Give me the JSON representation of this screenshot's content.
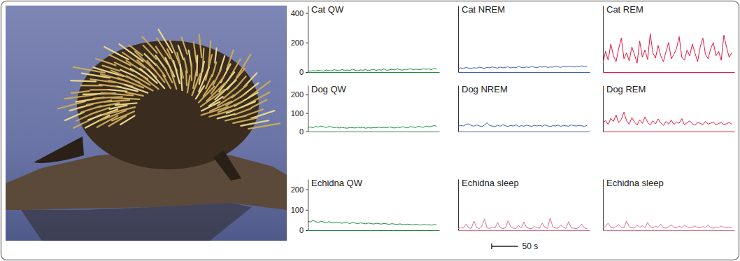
{
  "chart_data": [
    {
      "type": "line",
      "title": "Cat QW",
      "color": "#1e8a3e",
      "xlim": [
        0,
        250
      ],
      "ylim": [
        0,
        450
      ],
      "yticks": [
        0,
        200,
        400
      ],
      "tick_labels": "y",
      "x": [
        0,
        5,
        10,
        15,
        20,
        25,
        30,
        35,
        40,
        45,
        50,
        55,
        60,
        65,
        70,
        75,
        80,
        85,
        90,
        95,
        100,
        105,
        110,
        115,
        120,
        125,
        130,
        135,
        140,
        145,
        150,
        155,
        160,
        165,
        170,
        175,
        180,
        185,
        190,
        195,
        200,
        205,
        210,
        215,
        220,
        225,
        230,
        235,
        240,
        245
      ],
      "values": [
        8,
        6,
        10,
        7,
        12,
        9,
        6,
        14,
        10,
        8,
        16,
        12,
        9,
        18,
        11,
        14,
        10,
        20,
        13,
        9,
        15,
        12,
        17,
        10,
        14,
        19,
        11,
        16,
        13,
        21,
        12,
        15,
        18,
        14,
        22,
        16,
        13,
        19,
        17,
        24,
        15,
        20,
        18,
        16,
        23,
        19,
        21,
        17,
        25,
        20
      ]
    },
    {
      "type": "line",
      "title": "Cat NREM",
      "color": "#3a5fb0",
      "xlim": [
        0,
        250
      ],
      "ylim": [
        0,
        450
      ],
      "tick_labels": false,
      "x": [
        0,
        5,
        10,
        15,
        20,
        25,
        30,
        35,
        40,
        45,
        50,
        55,
        60,
        65,
        70,
        75,
        80,
        85,
        90,
        95,
        100,
        105,
        110,
        115,
        120,
        125,
        130,
        135,
        140,
        145,
        150,
        155,
        160,
        165,
        170,
        175,
        180,
        185,
        190,
        195,
        200,
        205,
        210,
        215,
        220,
        225,
        230,
        235,
        240,
        245
      ],
      "values": [
        22,
        28,
        25,
        31,
        27,
        24,
        30,
        26,
        33,
        29,
        25,
        32,
        28,
        35,
        30,
        27,
        34,
        29,
        31,
        36,
        28,
        33,
        30,
        37,
        32,
        29,
        35,
        31,
        38,
        33,
        30,
        36,
        34,
        39,
        31,
        35,
        33,
        40,
        36,
        32,
        38,
        35,
        41,
        37,
        34,
        39,
        36,
        42,
        38,
        35
      ]
    },
    {
      "type": "line",
      "title": "Cat REM",
      "color": "#e0193f",
      "xlim": [
        0,
        250
      ],
      "ylim": [
        0,
        450
      ],
      "tick_labels": false,
      "x": [
        0,
        5,
        10,
        15,
        20,
        25,
        30,
        35,
        40,
        45,
        50,
        55,
        60,
        65,
        70,
        75,
        80,
        85,
        90,
        95,
        100,
        105,
        110,
        115,
        120,
        125,
        130,
        135,
        140,
        145,
        150,
        155,
        160,
        165,
        170,
        175,
        180,
        185,
        190,
        195,
        200,
        205,
        210,
        215,
        220,
        225,
        230,
        235,
        240,
        245
      ],
      "values": [
        60,
        140,
        80,
        190,
        110,
        70,
        160,
        230,
        90,
        130,
        75,
        170,
        120,
        60,
        210,
        100,
        150,
        85,
        260,
        130,
        95,
        180,
        110,
        70,
        140,
        200,
        90,
        120,
        160,
        240,
        100,
        80,
        150,
        110,
        190,
        130,
        70,
        170,
        230,
        120,
        90,
        160,
        200,
        110,
        140,
        80,
        250,
        170,
        100,
        130
      ]
    },
    {
      "type": "line",
      "title": "Dog QW",
      "color": "#1e8a3e",
      "xlim": [
        0,
        250
      ],
      "ylim": [
        0,
        250
      ],
      "yticks": [
        0,
        100,
        200
      ],
      "tick_labels": "y",
      "x": [
        0,
        5,
        10,
        15,
        20,
        25,
        30,
        35,
        40,
        45,
        50,
        55,
        60,
        65,
        70,
        75,
        80,
        85,
        90,
        95,
        100,
        105,
        110,
        115,
        120,
        125,
        130,
        135,
        140,
        145,
        150,
        155,
        160,
        165,
        170,
        175,
        180,
        185,
        190,
        195,
        200,
        205,
        210,
        215,
        220,
        225,
        230,
        235,
        240,
        245
      ],
      "values": [
        22,
        25,
        20,
        28,
        24,
        30,
        26,
        22,
        27,
        25,
        21,
        24,
        19,
        23,
        20,
        18,
        22,
        21,
        19,
        24,
        20,
        23,
        18,
        21,
        19,
        22,
        20,
        24,
        21,
        23,
        20,
        25,
        22,
        19,
        24,
        21,
        26,
        23,
        20,
        27,
        24,
        22,
        28,
        25,
        23,
        30,
        26,
        28,
        32,
        29
      ]
    },
    {
      "type": "line",
      "title": "Dog NREM",
      "color": "#3a5fb0",
      "xlim": [
        0,
        250
      ],
      "ylim": [
        0,
        250
      ],
      "tick_labels": false,
      "x": [
        0,
        5,
        10,
        15,
        20,
        25,
        30,
        35,
        40,
        45,
        50,
        55,
        60,
        65,
        70,
        75,
        80,
        85,
        90,
        95,
        100,
        105,
        110,
        115,
        120,
        125,
        130,
        135,
        140,
        145,
        150,
        155,
        160,
        165,
        170,
        175,
        180,
        185,
        190,
        195,
        200,
        205,
        210,
        215,
        220,
        225,
        230,
        235,
        240,
        245
      ],
      "values": [
        28,
        34,
        30,
        38,
        42,
        33,
        29,
        36,
        31,
        27,
        35,
        48,
        32,
        30,
        26,
        34,
        29,
        37,
        31,
        28,
        33,
        30,
        36,
        27,
        32,
        29,
        35,
        31,
        28,
        34,
        30,
        33,
        29,
        36,
        31,
        27,
        32,
        30,
        35,
        28,
        33,
        31,
        29,
        36,
        32,
        30,
        34,
        31,
        28,
        33
      ]
    },
    {
      "type": "line",
      "title": "Dog REM",
      "color": "#e0193f",
      "xlim": [
        0,
        250
      ],
      "ylim": [
        0,
        250
      ],
      "tick_labels": false,
      "x": [
        0,
        5,
        10,
        15,
        20,
        25,
        30,
        35,
        40,
        45,
        50,
        55,
        60,
        65,
        70,
        75,
        80,
        85,
        90,
        95,
        100,
        105,
        110,
        115,
        120,
        125,
        130,
        135,
        140,
        145,
        150,
        155,
        160,
        165,
        170,
        175,
        180,
        185,
        190,
        195,
        200,
        205,
        210,
        215,
        220,
        225,
        230,
        235,
        240,
        245
      ],
      "values": [
        45,
        60,
        38,
        72,
        55,
        90,
        48,
        66,
        105,
        58,
        40,
        75,
        52,
        35,
        62,
        44,
        80,
        50,
        36,
        58,
        42,
        68,
        47,
        33,
        55,
        40,
        62,
        38,
        52,
        45,
        70,
        36,
        48,
        58,
        42,
        34,
        50,
        44,
        38,
        55,
        40,
        46,
        52,
        36,
        44,
        48,
        38,
        42,
        50,
        40
      ]
    },
    {
      "type": "line",
      "title": "Echidna QW",
      "color": "#1e8a3e",
      "xlim": [
        0,
        250
      ],
      "ylim": [
        0,
        250
      ],
      "yticks": [
        0,
        100,
        200
      ],
      "tick_labels": "y",
      "x": [
        0,
        5,
        10,
        15,
        20,
        25,
        30,
        35,
        40,
        45,
        50,
        55,
        60,
        65,
        70,
        75,
        80,
        85,
        90,
        95,
        100,
        105,
        110,
        115,
        120,
        125,
        130,
        135,
        140,
        145,
        150,
        155,
        160,
        165,
        170,
        175,
        180,
        185,
        190,
        195,
        200,
        205,
        210,
        215,
        220,
        225,
        230,
        235,
        240,
        245
      ],
      "values": [
        45,
        40,
        48,
        42,
        38,
        44,
        40,
        36,
        42,
        38,
        35,
        40,
        37,
        34,
        38,
        36,
        33,
        37,
        35,
        32,
        36,
        34,
        31,
        35,
        33,
        30,
        34,
        32,
        30,
        33,
        31,
        29,
        32,
        30,
        28,
        31,
        29,
        27,
        30,
        28,
        26,
        29,
        27,
        25,
        28,
        26,
        27,
        25,
        28,
        26
      ]
    },
    {
      "type": "line",
      "title": "Echidna sleep",
      "color": "#d9758f",
      "xlim": [
        0,
        250
      ],
      "ylim": [
        0,
        250
      ],
      "tick_labels": false,
      "scale_bar": {
        "value": 50,
        "label": "50 s"
      },
      "x": [
        0,
        5,
        10,
        15,
        20,
        25,
        30,
        35,
        40,
        45,
        50,
        55,
        60,
        65,
        70,
        75,
        80,
        85,
        90,
        95,
        100,
        105,
        110,
        115,
        120,
        125,
        130,
        135,
        140,
        145,
        150,
        155,
        160,
        165,
        170,
        175,
        180,
        185,
        190,
        195,
        200,
        205,
        210,
        215,
        220,
        225,
        230,
        235,
        240,
        245
      ],
      "values": [
        8,
        15,
        10,
        30,
        12,
        9,
        45,
        14,
        8,
        20,
        55,
        11,
        9,
        16,
        10,
        38,
        13,
        8,
        12,
        48,
        15,
        10,
        9,
        22,
        11,
        40,
        14,
        9,
        8,
        18,
        12,
        10,
        35,
        13,
        9,
        60,
        16,
        11,
        10,
        25,
        14,
        9,
        42,
        12,
        10,
        8,
        15,
        30,
        11,
        9
      ]
    },
    {
      "type": "line",
      "title": "Echidna sleep",
      "color": "#d9758f",
      "xlim": [
        0,
        250
      ],
      "ylim": [
        0,
        250
      ],
      "tick_labels": false,
      "x": [
        0,
        5,
        10,
        15,
        20,
        25,
        30,
        35,
        40,
        45,
        50,
        55,
        60,
        65,
        70,
        75,
        80,
        85,
        90,
        95,
        100,
        105,
        110,
        115,
        120,
        125,
        130,
        135,
        140,
        145,
        150,
        155,
        160,
        165,
        170,
        175,
        180,
        185,
        190,
        195,
        200,
        205,
        210,
        215,
        220,
        225,
        230,
        235,
        240,
        245
      ],
      "values": [
        12,
        20,
        35,
        15,
        10,
        18,
        28,
        14,
        11,
        45,
        17,
        12,
        10,
        25,
        15,
        22,
        13,
        38,
        16,
        11,
        20,
        14,
        30,
        12,
        10,
        17,
        26,
        14,
        11,
        19,
        13,
        24,
        16,
        12,
        15,
        21,
        13,
        11,
        18,
        14,
        27,
        12,
        10,
        16,
        13,
        20,
        15,
        11,
        14,
        12
      ]
    }
  ]
}
